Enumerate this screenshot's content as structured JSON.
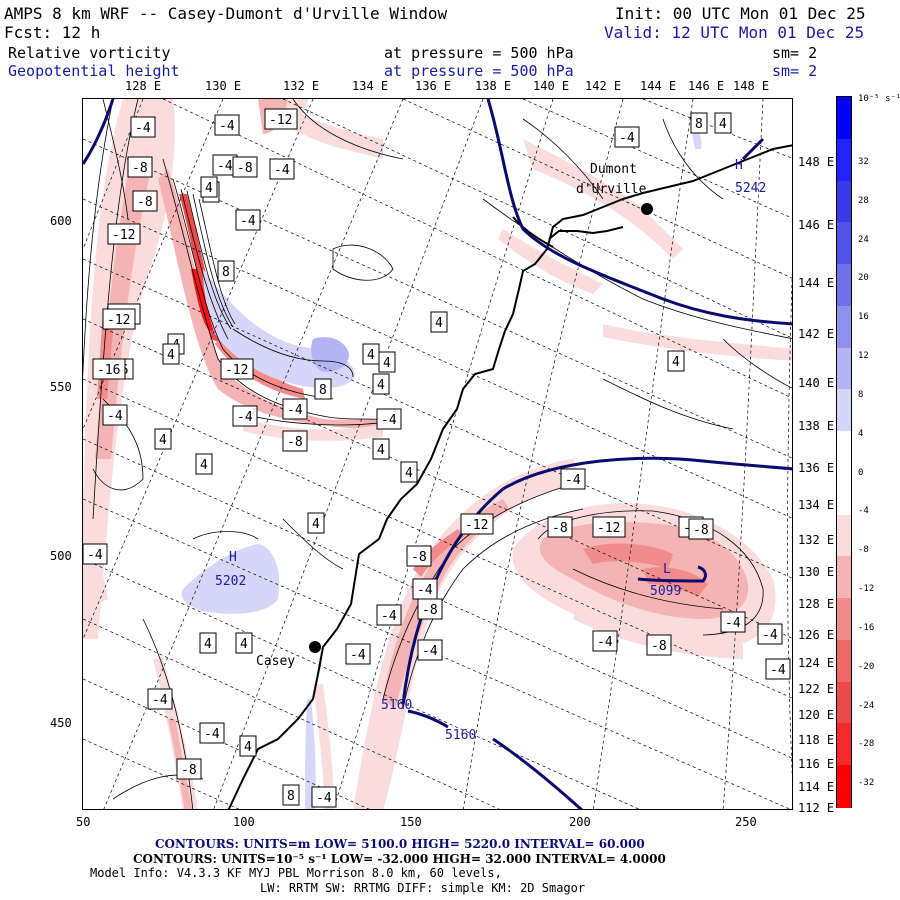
{
  "header": {
    "title": "AMPS 8 km WRF -- Casey-Dumont d'Urville Window",
    "init": "Init: 00 UTC Mon 01 Dec 25",
    "fcst": "Fcst:   12 h",
    "valid": "Valid: 12 UTC Mon 01 Dec 25",
    "field1_name": "Relative vorticity",
    "field1_level": "at pressure =  500 hPa",
    "field1_sm": "sm= 2",
    "field2_name": "Geopotential height",
    "field2_level": "at pressure =  500 hPa",
    "field2_sm": "sm= 2"
  },
  "top_lon_labels": [
    "128 E",
    "130 E",
    "132 E",
    "134 E",
    "136 E",
    "138 E",
    "140 E",
    "142 E",
    "144 E",
    "146 E",
    "148 E"
  ],
  "right_lon_labels": [
    "148 E",
    "146 E",
    "144 E",
    "142 E",
    "140 E",
    "138 E",
    "136 E",
    "134 E",
    "132 E",
    "130 E",
    "128 E",
    "126 E",
    "124 E",
    "122 E",
    "120 E",
    "118 E",
    "116 E",
    "114 E",
    "112 E"
  ],
  "x_axis_ticks": [
    "50",
    "100",
    "150",
    "200",
    "250"
  ],
  "y_axis_ticks": [
    "600",
    "550",
    "500",
    "450"
  ],
  "places": {
    "dumont": "Dumont\nd'Urville",
    "dumont_line1": "Dumont",
    "dumont_line2": "d'Urville",
    "casey": "Casey"
  },
  "height_contours": {
    "high1": "H",
    "high1_value": "5242",
    "high2": "H",
    "high2_value": "5202",
    "low": "L",
    "low_value": "5099",
    "line_value_a": "5160",
    "line_value_b": "5160"
  },
  "vort_labels": [
    "-4",
    "-4",
    "-12",
    "-4",
    "8",
    "4",
    "-8",
    "-8",
    "-4",
    "-4",
    "-8",
    "4",
    "4",
    "-12",
    "-4",
    "-12",
    "8",
    "4",
    "4",
    "-16",
    "-12",
    "4",
    "4",
    "-16",
    "-12",
    "8",
    "4",
    "-4",
    "-4",
    "-4",
    "-8",
    "-4",
    "4",
    "4",
    "4",
    "4",
    "4",
    "4",
    "-4",
    "-12",
    "-8",
    "-12",
    "-8",
    "-4",
    "-8",
    "-4",
    "-8",
    "-8",
    "-8",
    "-4",
    "-4",
    "-4",
    "-4",
    "-4",
    "-4",
    "8",
    "4",
    "-4",
    "-4",
    "-8",
    "-4",
    "-4",
    "4",
    "4",
    "4"
  ],
  "colorbar": {
    "unit": "10⁻⁵ s⁻¹",
    "labels": [
      "32",
      "28",
      "24",
      "20",
      "16",
      "12",
      "8",
      "4",
      "0",
      "-4",
      "-8",
      "-12",
      "-16",
      "-20",
      "-24",
      "-28",
      "-32"
    ],
    "colors": [
      "#0000ff",
      "#2222ff",
      "#3a3ae8",
      "#5252e6",
      "#7070e8",
      "#9090ee",
      "#b4b4f4",
      "#d6d6f8",
      "#ffffff",
      "#ffffff",
      "#fadcdc",
      "#f5b4b4",
      "#f08c8c",
      "#ee6a6a",
      "#ee4a4a",
      "#f52a2a",
      "#ff0000"
    ]
  },
  "footer": {
    "line1": "CONTOURS:  UNITS=m  LOW=  5100.0        HIGH=  5220.0        INTERVAL=   60.000",
    "line2": "CONTOURS:  UNITS=10⁻⁵ s⁻¹   LOW= -32.000       HIGH=  32.000      INTERVAL=   4.0000",
    "line3": "Model Info: V4.3.3   KF     MYJ PBL  Morrison          8.0 km,  60 levels,",
    "line4": "LW: RRTM SW: RRTMG   DIFF: simple KM: 2D Smagor"
  },
  "colors": {
    "coast": "#000000",
    "height_line": "#0a0a70",
    "blue_text": "#1a1aa0"
  }
}
